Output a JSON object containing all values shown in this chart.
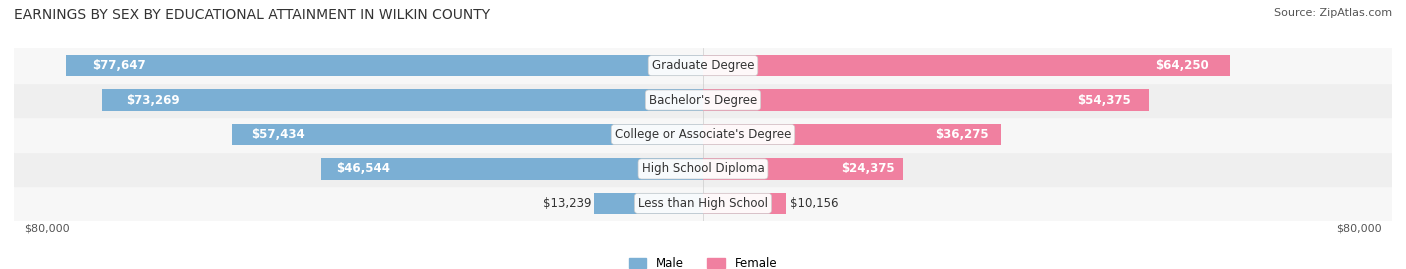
{
  "title": "EARNINGS BY SEX BY EDUCATIONAL ATTAINMENT IN WILKIN COUNTY",
  "source": "Source: ZipAtlas.com",
  "categories": [
    "Less than High School",
    "High School Diploma",
    "College or Associate's Degree",
    "Bachelor's Degree",
    "Graduate Degree"
  ],
  "male_values": [
    13239,
    46544,
    57434,
    73269,
    77647
  ],
  "female_values": [
    10156,
    24375,
    36275,
    54375,
    64250
  ],
  "male_color": "#7bafd4",
  "female_color": "#f080a0",
  "bar_bg_color": "#e8e8e8",
  "row_bg_colors": [
    "#f5f5f5",
    "#eeeeee"
  ],
  "max_val": 80000,
  "x_tick_left": -80000,
  "x_tick_right": 80000,
  "title_fontsize": 10,
  "source_fontsize": 8,
  "label_fontsize": 8.5,
  "bar_height": 0.62,
  "background_color": "#ffffff"
}
